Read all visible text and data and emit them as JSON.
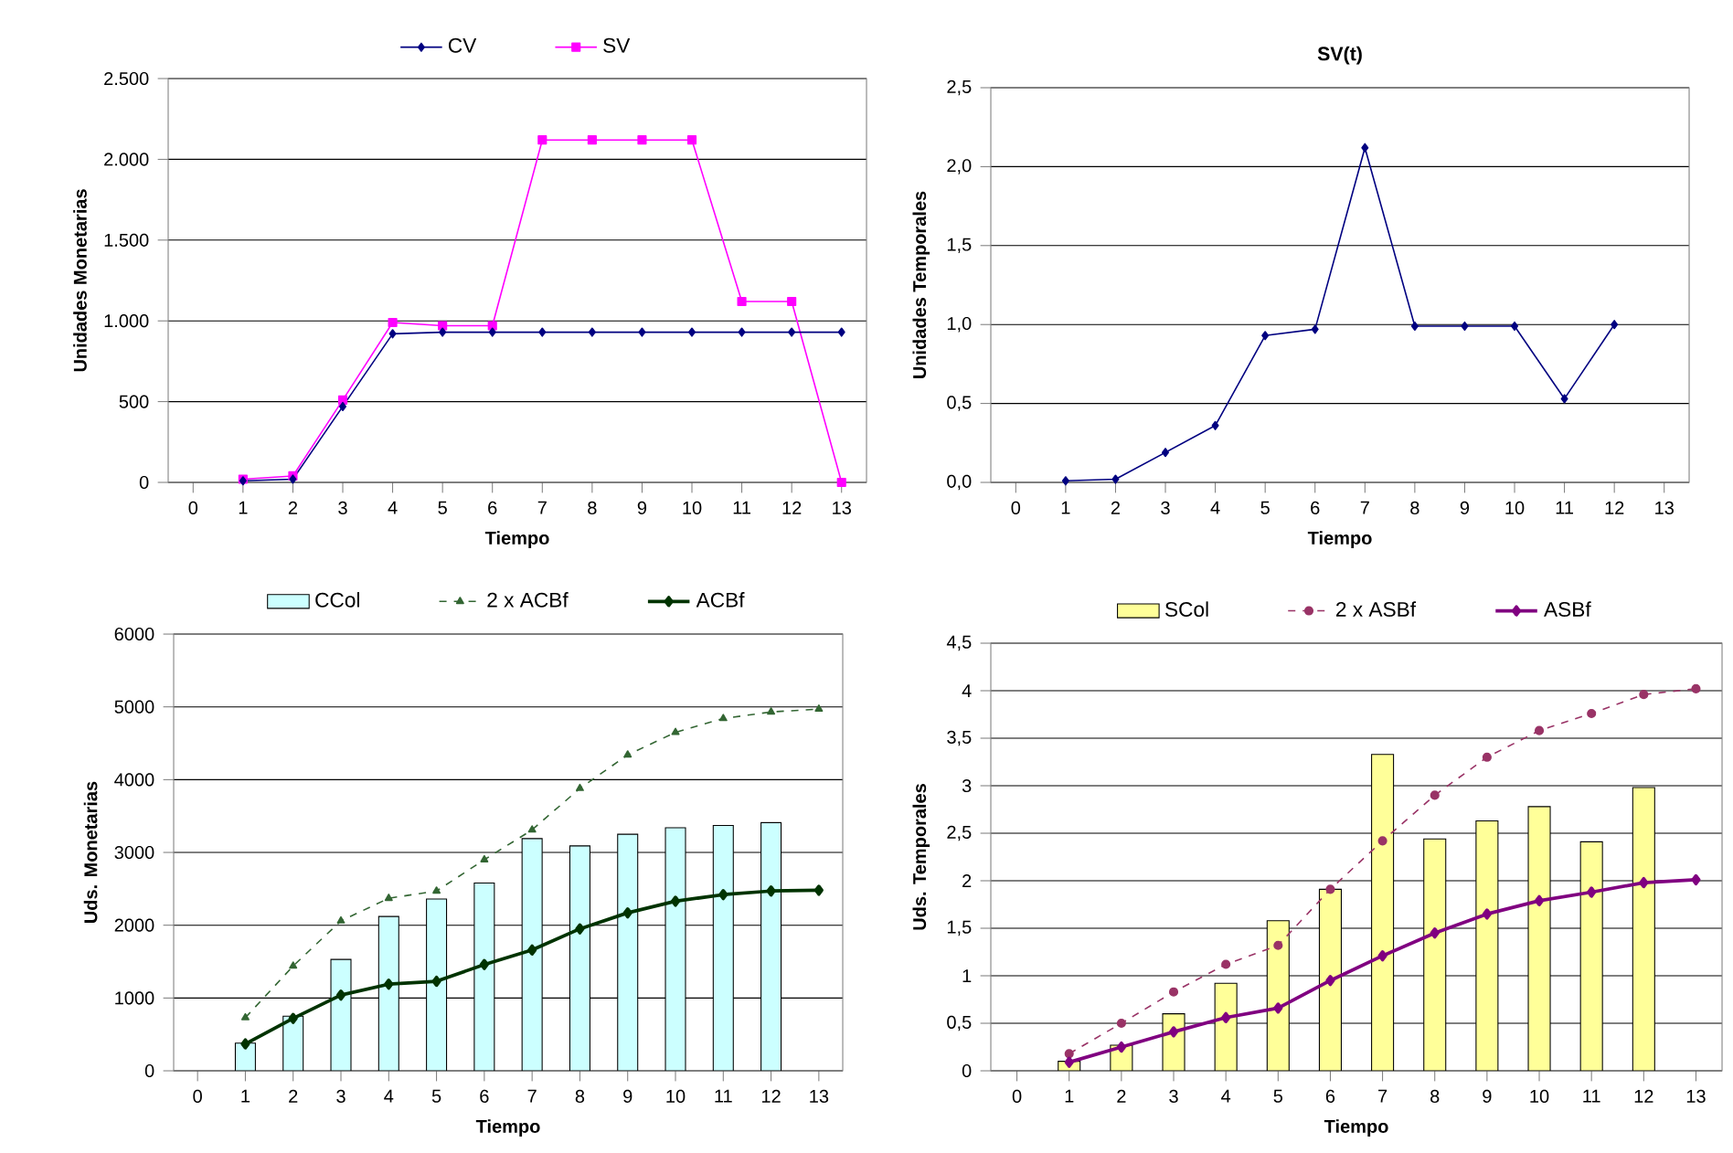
{
  "chart_data": [
    {
      "type": "line",
      "ylabel": "Unidades Monetarias",
      "xlabel": "Tiempo",
      "categories": [
        "0",
        "1",
        "2",
        "3",
        "4",
        "5",
        "6",
        "7",
        "8",
        "9",
        "10",
        "11",
        "12",
        "13"
      ],
      "series": [
        {
          "name": "CV",
          "color": "#000080",
          "marker": "diamond",
          "values": [
            null,
            10,
            20,
            470,
            920,
            930,
            930,
            930,
            930,
            930,
            930,
            930,
            930,
            930
          ]
        },
        {
          "name": "SV",
          "color": "#ff00ff",
          "marker": "square",
          "values": [
            null,
            20,
            40,
            510,
            990,
            970,
            970,
            2120,
            2120,
            2120,
            2120,
            1120,
            1120,
            0
          ]
        }
      ],
      "ylim": [
        0,
        2500
      ],
      "yticks": [
        0,
        500,
        {
          "value": 1000,
          "label": "1.000"
        },
        {
          "value": 1500,
          "label": "1.500"
        },
        {
          "value": 2000,
          "label": "2.000"
        },
        {
          "value": 2500,
          "label": "2.500"
        }
      ],
      "grid": "y",
      "legend": "top"
    },
    {
      "type": "line",
      "title": "SV(t)",
      "ylabel": "Unidades Temporales",
      "xlabel": "Tiempo",
      "categories": [
        "0",
        "1",
        "2",
        "3",
        "4",
        "5",
        "6",
        "7",
        "8",
        "9",
        "10",
        "11",
        "12",
        "13"
      ],
      "series": [
        {
          "color": "#000080",
          "marker": "diamond",
          "values": [
            null,
            0.01,
            0.02,
            0.19,
            0.36,
            0.93,
            0.97,
            2.12,
            0.99,
            0.99,
            0.99,
            0.53,
            1.0,
            null
          ]
        }
      ],
      "ylim": [
        0,
        2.5
      ],
      "yticks": [
        {
          "value": 0,
          "label": "0,0"
        },
        {
          "value": 0.5,
          "label": "0,5"
        },
        {
          "value": 1,
          "label": "1,0"
        },
        {
          "value": 1.5,
          "label": "1,5"
        },
        {
          "value": 2,
          "label": "2,0"
        },
        {
          "value": 2.5,
          "label": "2,5"
        }
      ],
      "grid": "y"
    },
    {
      "type": "bar",
      "ylabel": "Uds. Monetarias",
      "xlabel": "Tiempo",
      "categories": [
        "0",
        "1",
        "2",
        "3",
        "4",
        "5",
        "6",
        "7",
        "8",
        "9",
        "10",
        "11",
        "12",
        "13"
      ],
      "series": [
        {
          "name": "CCol",
          "type": "bar",
          "color": "#ccffff",
          "values": [
            null,
            380,
            750,
            1530,
            2120,
            2360,
            2580,
            3190,
            3090,
            3250,
            3340,
            3370,
            3410,
            null
          ]
        },
        {
          "name": "2 x ACBf",
          "type": "line",
          "color": "#336633",
          "marker": "triangle",
          "line_style": "dashed",
          "values": [
            null,
            730,
            1440,
            2060,
            2370,
            2470,
            2900,
            3310,
            3880,
            4340,
            4650,
            4840,
            4930,
            4970
          ]
        },
        {
          "name": "ACBf",
          "type": "line",
          "color": "#003300",
          "marker": "diamond",
          "line_style": "solid",
          "values": [
            null,
            370,
            720,
            1040,
            1190,
            1230,
            1460,
            1660,
            1950,
            2170,
            2330,
            2420,
            2470,
            2480
          ]
        }
      ],
      "ylim": [
        0,
        6000
      ],
      "yticks": [
        0,
        1000,
        2000,
        3000,
        4000,
        5000,
        6000
      ],
      "grid": "y",
      "legend": "top"
    },
    {
      "type": "bar",
      "ylabel": "Uds. Temporales",
      "xlabel": "Tiempo",
      "categories": [
        "0",
        "1",
        "2",
        "3",
        "4",
        "5",
        "6",
        "7",
        "8",
        "9",
        "10",
        "11",
        "12",
        "13"
      ],
      "series": [
        {
          "name": "SCol",
          "type": "bar",
          "color": "#ffff99",
          "values": [
            null,
            0.1,
            0.27,
            0.6,
            0.92,
            1.58,
            1.91,
            3.33,
            2.44,
            2.63,
            2.78,
            2.41,
            2.98,
            null
          ]
        },
        {
          "name": "2 x ASBf",
          "type": "line",
          "color": "#993366",
          "marker": "circle",
          "line_style": "dashed",
          "values": [
            null,
            0.18,
            0.5,
            0.83,
            1.12,
            1.32,
            1.91,
            2.42,
            2.9,
            3.3,
            3.58,
            3.76,
            3.96,
            4.02
          ]
        },
        {
          "name": "ASBf",
          "type": "line",
          "color": "#800080",
          "marker": "diamond",
          "line_style": "solid",
          "values": [
            null,
            0.09,
            0.25,
            0.41,
            0.56,
            0.66,
            0.95,
            1.21,
            1.45,
            1.65,
            1.79,
            1.88,
            1.98,
            2.01
          ]
        }
      ],
      "ylim": [
        0,
        4.5
      ],
      "yticks": [
        0,
        {
          "value": 0.5,
          "label": "0,5"
        },
        1,
        {
          "value": 1.5,
          "label": "1,5"
        },
        2,
        {
          "value": 2.5,
          "label": "2,5"
        },
        3,
        {
          "value": 3.5,
          "label": "3,5"
        },
        4,
        {
          "value": 4.5,
          "label": "4,5"
        }
      ],
      "grid": "y",
      "legend": "top"
    }
  ]
}
